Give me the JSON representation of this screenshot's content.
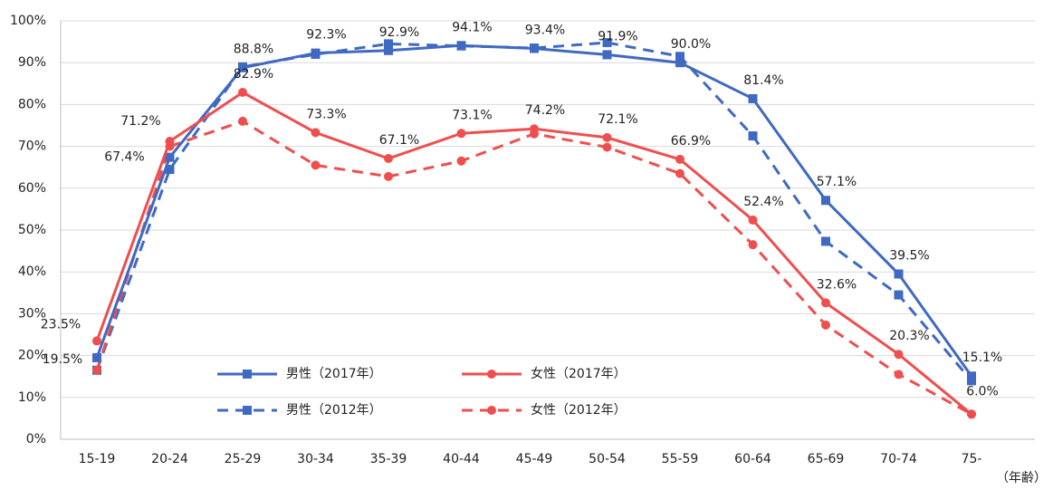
{
  "chart_data": {
    "type": "line",
    "categories": [
      "15-19",
      "20-24",
      "25-29",
      "30-34",
      "35-39",
      "40-44",
      "45-49",
      "50-54",
      "55-59",
      "60-64",
      "65-69",
      "70-74",
      "75-"
    ],
    "x_unit_label": "（年齢）",
    "ylim": [
      0,
      100
    ],
    "yticks": [
      {
        "value": 0,
        "label": "0%"
      },
      {
        "value": 10,
        "label": "10%"
      },
      {
        "value": 20,
        "label": "20%"
      },
      {
        "value": 30,
        "label": "30%"
      },
      {
        "value": 40,
        "label": "40%"
      },
      {
        "value": 50,
        "label": "50%"
      },
      {
        "value": 60,
        "label": "60%"
      },
      {
        "value": 70,
        "label": "70%"
      },
      {
        "value": 80,
        "label": "80%"
      },
      {
        "value": 90,
        "label": "90%"
      },
      {
        "value": 100,
        "label": "100%"
      }
    ],
    "grid": true,
    "series": [
      {
        "name": "男性（2017年）",
        "color": "#3f69c2",
        "line_style": "solid",
        "marker": "square",
        "values": [
          19.5,
          67.4,
          88.8,
          92.3,
          92.9,
          94.1,
          93.4,
          91.9,
          90.0,
          81.4,
          57.1,
          39.5,
          15.1
        ],
        "value_labels": [
          "19.5%",
          "67.4%",
          "88.8%",
          "92.3%",
          "92.9%",
          "94.1%",
          "93.4%",
          "91.9%",
          "90.0%",
          "81.4%",
          "57.1%",
          "39.5%",
          "15.1%"
        ]
      },
      {
        "name": "女性（2017年）",
        "color": "#ef4e4e",
        "line_style": "solid",
        "marker": "circle",
        "values": [
          23.5,
          71.2,
          82.9,
          73.3,
          67.1,
          73.1,
          74.2,
          72.1,
          66.9,
          52.4,
          32.6,
          20.3,
          6.0
        ],
        "value_labels": [
          "23.5%",
          "71.2%",
          "82.9%",
          "73.3%",
          "67.1%",
          "73.1%",
          "74.2%",
          "72.1%",
          "66.9%",
          "52.4%",
          "32.6%",
          "20.3%",
          "6.0%"
        ]
      },
      {
        "name": "男性（2012年）",
        "color": "#3f69c2",
        "line_style": "dashed",
        "marker": "square",
        "values": [
          16.5,
          64.5,
          89.0,
          92.0,
          94.5,
          94.0,
          93.5,
          94.8,
          91.5,
          72.5,
          47.3,
          34.5,
          14.0
        ]
      },
      {
        "name": "女性（2012年）",
        "color": "#ef4e4e",
        "line_style": "dashed",
        "marker": "circle",
        "values": [
          16.5,
          70.0,
          76.0,
          65.5,
          62.8,
          66.5,
          73.0,
          69.8,
          63.5,
          46.5,
          27.3,
          15.5,
          6.0
        ]
      }
    ]
  }
}
